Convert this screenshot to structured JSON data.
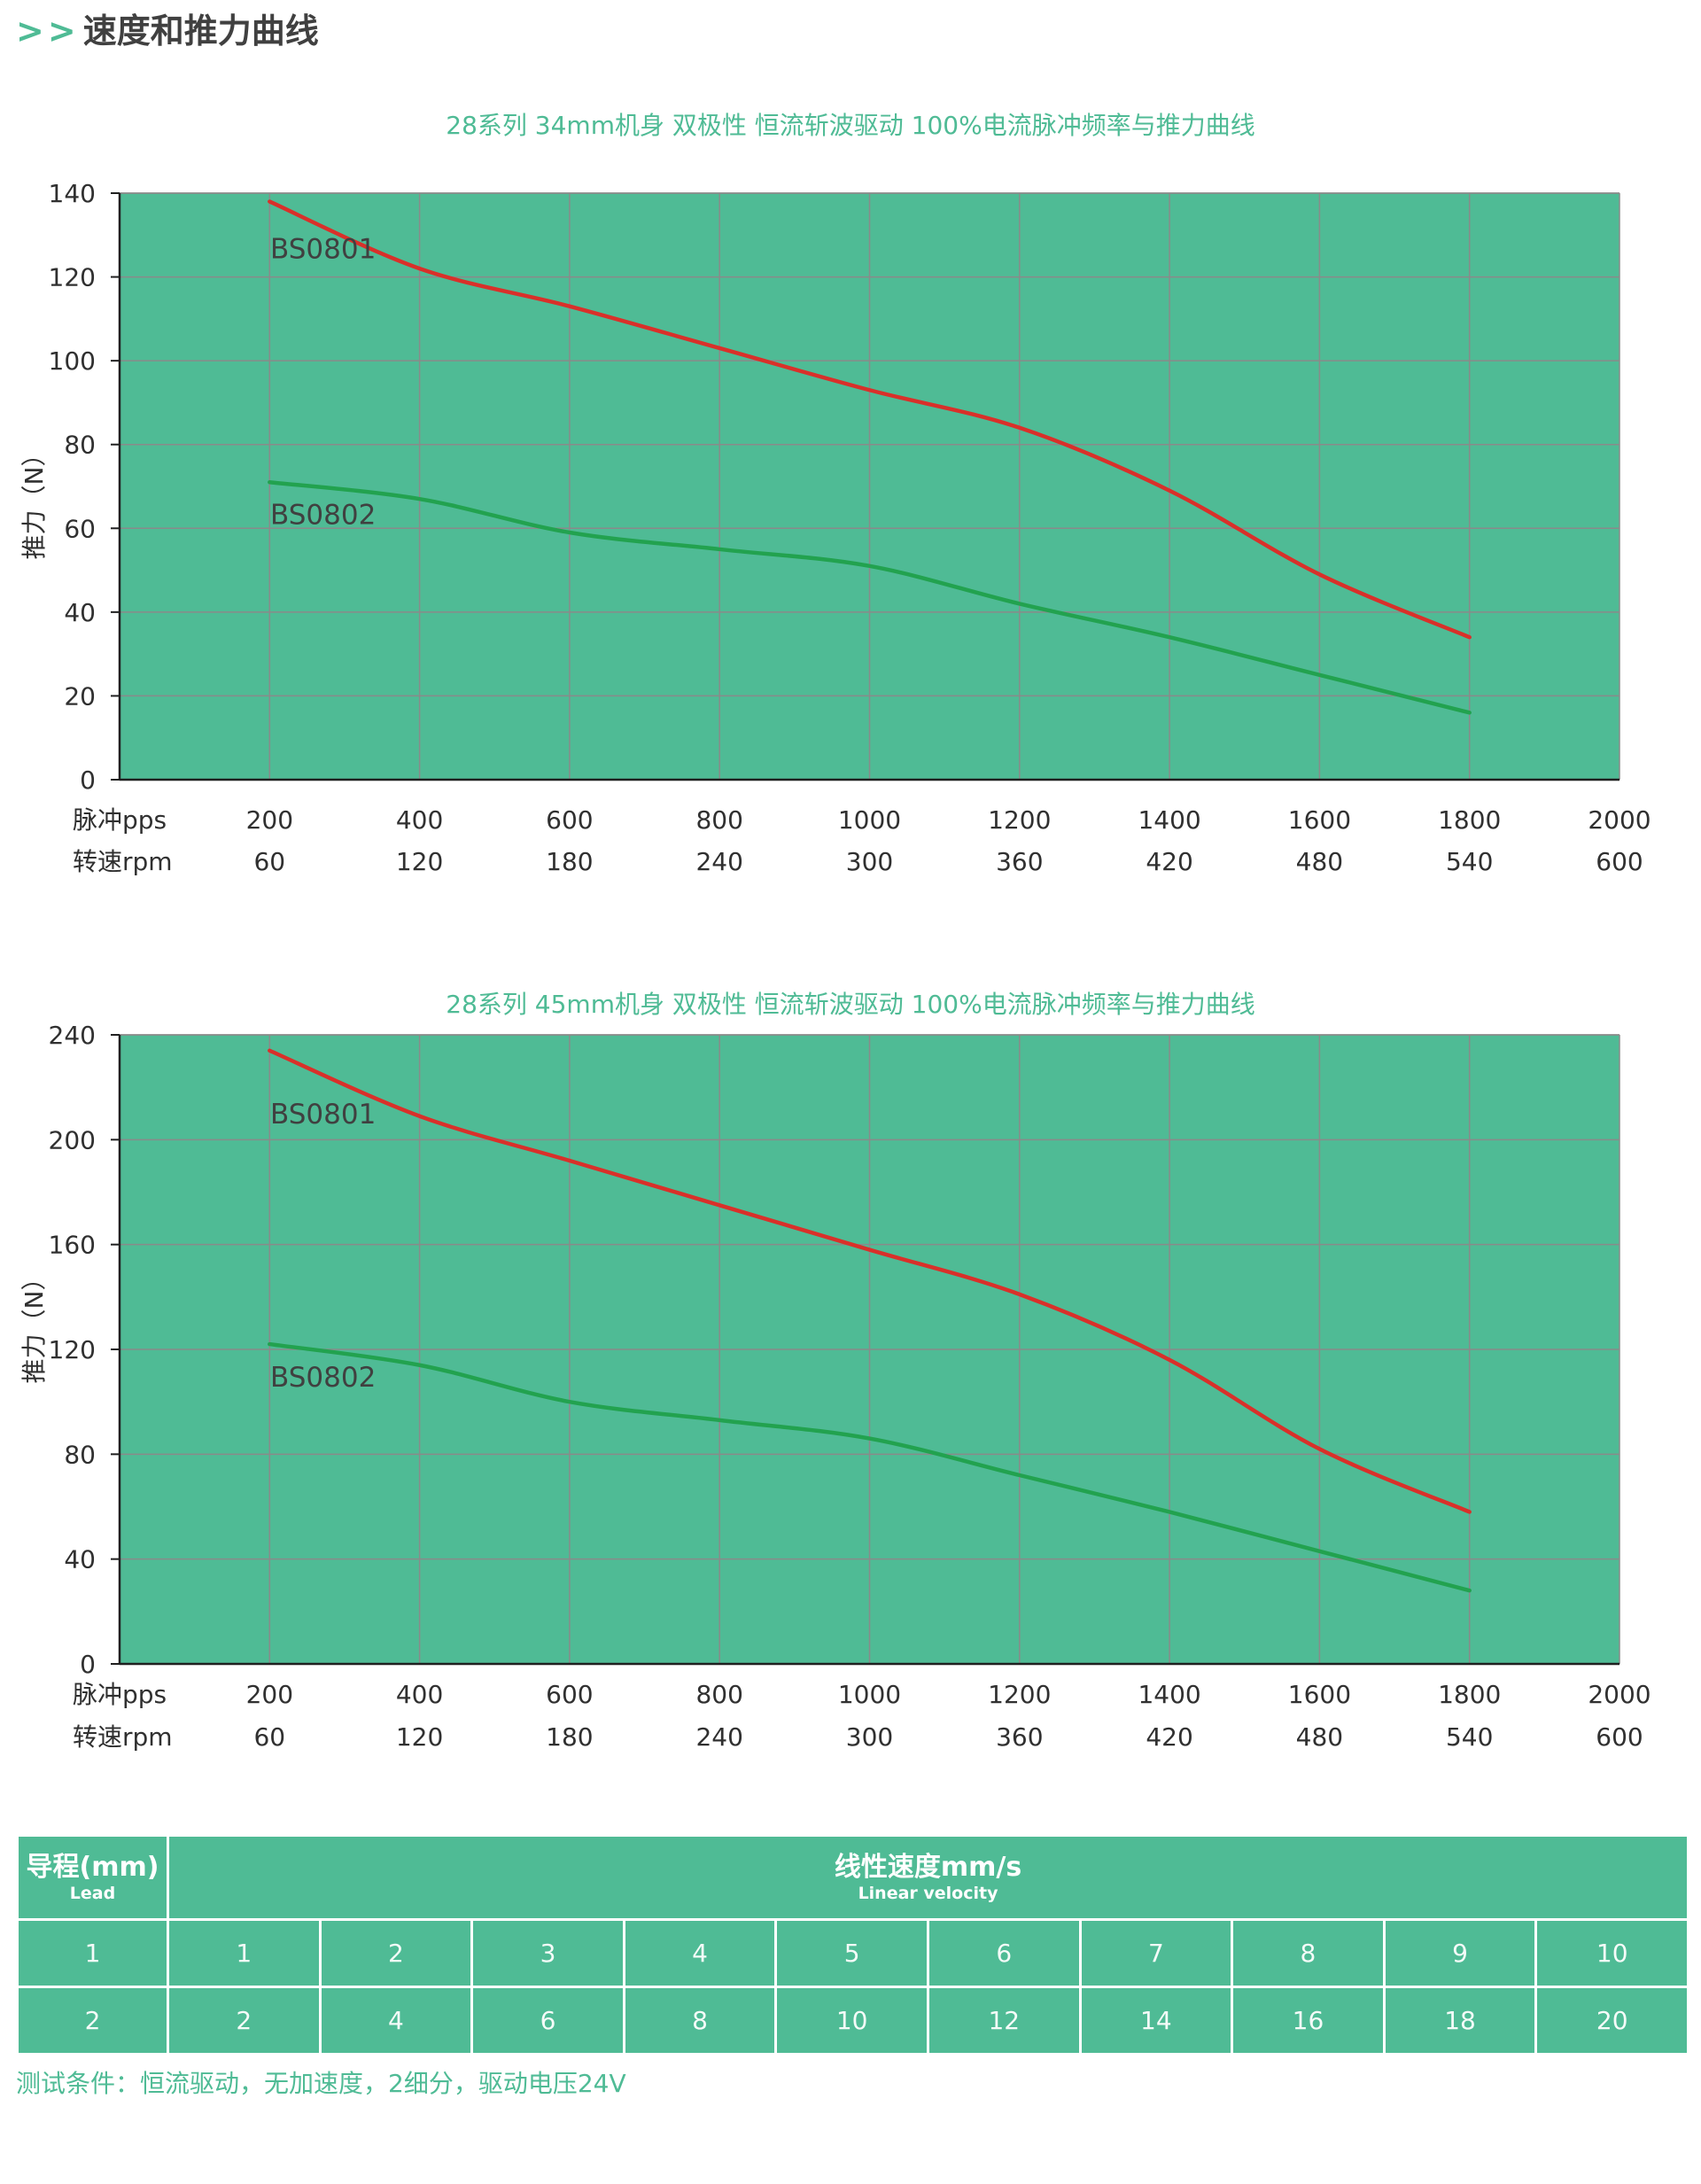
{
  "header": {
    "arrows": ">>",
    "title": "速度和推力曲线"
  },
  "chart_data": [
    {
      "type": "line",
      "title": "28系列 34mm机身 双极性 恒流斩波驱动 100%电流脉冲频率与推力曲线",
      "ylabel": "推力（N）",
      "ylim": [
        0,
        140
      ],
      "yticks": [
        0,
        20,
        40,
        60,
        80,
        100,
        120,
        140
      ],
      "xlim": [
        0,
        2000
      ],
      "x_rows": [
        {
          "label": "脉冲pps",
          "ticks": [
            "200",
            "400",
            "600",
            "800",
            "1000",
            "1200",
            "1400",
            "1600",
            "1800",
            "2000"
          ]
        },
        {
          "label": "转速rpm",
          "ticks": [
            "60",
            "120",
            "180",
            "240",
            "300",
            "360",
            "420",
            "480",
            "540",
            "600"
          ]
        }
      ],
      "grid": true,
      "series": [
        {
          "name": "BS0801",
          "color": "#d9302a",
          "x": [
            200,
            400,
            600,
            800,
            1000,
            1200,
            1400,
            1600,
            1800
          ],
          "y": [
            138,
            122,
            113,
            103,
            93,
            84,
            69,
            49,
            34
          ]
        },
        {
          "name": "BS0802",
          "color": "#22a24f",
          "x": [
            200,
            400,
            600,
            800,
            1000,
            1200,
            1400,
            1600,
            1800
          ],
          "y": [
            71,
            67,
            59,
            55,
            51,
            42,
            34,
            25,
            16
          ]
        }
      ]
    },
    {
      "type": "line",
      "title": "28系列 45mm机身 双极性 恒流斩波驱动 100%电流脉冲频率与推力曲线",
      "ylabel": "推力（N）",
      "ylim": [
        0,
        240
      ],
      "yticks": [
        0,
        40,
        80,
        120,
        160,
        200,
        240
      ],
      "xlim": [
        0,
        2000
      ],
      "x_rows": [
        {
          "label": "脉冲pps",
          "ticks": [
            "200",
            "400",
            "600",
            "800",
            "1000",
            "1200",
            "1400",
            "1600",
            "1800",
            "2000"
          ]
        },
        {
          "label": "转速rpm",
          "ticks": [
            "60",
            "120",
            "180",
            "240",
            "300",
            "360",
            "420",
            "480",
            "540",
            "600"
          ]
        }
      ],
      "grid": true,
      "series": [
        {
          "name": "BS0801",
          "color": "#d9302a",
          "x": [
            200,
            400,
            600,
            800,
            1000,
            1200,
            1400,
            1600,
            1800
          ],
          "y": [
            234,
            209,
            192,
            175,
            158,
            141,
            116,
            82,
            58
          ]
        },
        {
          "name": "BS0802",
          "color": "#22a24f",
          "x": [
            200,
            400,
            600,
            800,
            1000,
            1200,
            1400,
            1600,
            1800
          ],
          "y": [
            122,
            114,
            100,
            93,
            86,
            72,
            58,
            43,
            28
          ]
        }
      ]
    }
  ],
  "table": {
    "lead_header": "导程(mm)",
    "lead_sub": "Lead",
    "velocity_header": "线性速度mm/s",
    "velocity_sub": "Linear velocity",
    "rows": [
      {
        "lead": "1",
        "values": [
          "1",
          "2",
          "3",
          "4",
          "5",
          "6",
          "7",
          "8",
          "9",
          "10"
        ]
      },
      {
        "lead": "2",
        "values": [
          "2",
          "4",
          "6",
          "8",
          "10",
          "12",
          "14",
          "16",
          "18",
          "20"
        ]
      }
    ]
  },
  "note": "测试条件：恒流驱动，无加速度，2细分，驱动电压24V"
}
